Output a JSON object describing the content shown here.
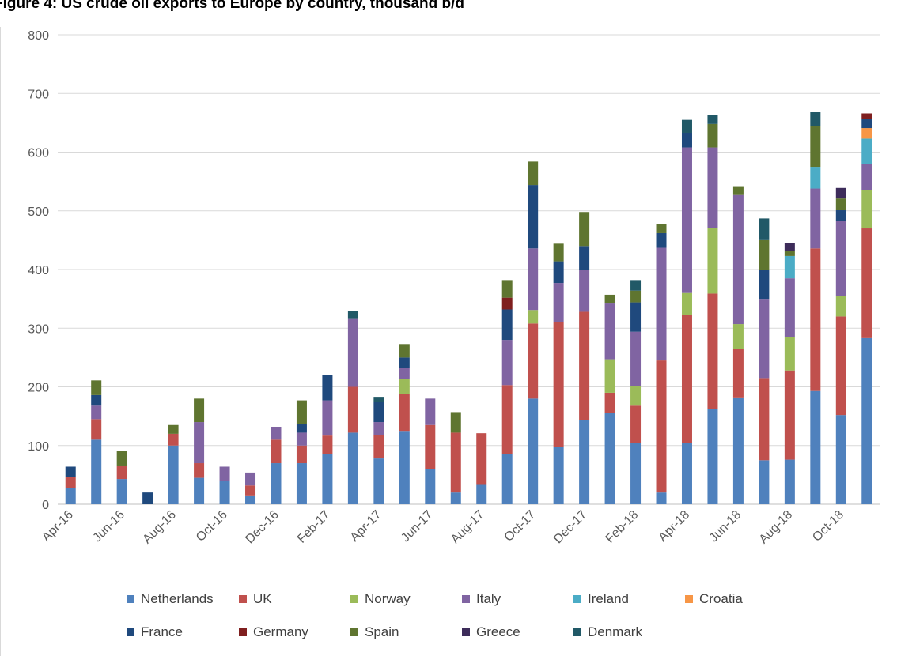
{
  "title": "Figure 4: US crude oil exports to Europe by country, thousand b/d",
  "chart_data": {
    "type": "bar",
    "stacked": true,
    "title": "Figure 4: US crude oil exports to Europe by country, thousand b/d",
    "xlabel": "",
    "ylabel": "",
    "ylim": [
      0,
      800
    ],
    "y_ticks": [
      0,
      100,
      200,
      300,
      400,
      500,
      600,
      700,
      800
    ],
    "grid": true,
    "legend_position": "bottom",
    "categories": [
      "Apr-16",
      "May-16",
      "Jun-16",
      "Jul-16",
      "Aug-16",
      "Sep-16",
      "Oct-16",
      "Nov-16",
      "Dec-16",
      "Jan-17",
      "Feb-17",
      "Mar-17",
      "Apr-17",
      "May-17",
      "Jun-17",
      "Jul-17",
      "Aug-17",
      "Sep-17",
      "Oct-17",
      "Nov-17",
      "Dec-17",
      "Jan-18",
      "Feb-18",
      "Mar-18",
      "Apr-18",
      "May-18",
      "Jun-18",
      "Jul-18",
      "Aug-18",
      "Sep-18",
      "Oct-18",
      "Nov-18"
    ],
    "x_tick_labels": [
      "Apr-16",
      "",
      "Jun-16",
      "",
      "Aug-16",
      "",
      "Oct-16",
      "",
      "Dec-16",
      "",
      "Feb-17",
      "",
      "Apr-17",
      "",
      "Jun-17",
      "",
      "Aug-17",
      "",
      "Oct-17",
      "",
      "Dec-17",
      "",
      "Feb-18",
      "",
      "Apr-18",
      "",
      "Jun-18",
      "",
      "Aug-18",
      "",
      "Oct-18",
      ""
    ],
    "series": [
      {
        "name": "Netherlands",
        "color": "#4f81bd",
        "values": [
          27,
          110,
          43,
          0,
          100,
          45,
          40,
          15,
          70,
          70,
          85,
          122,
          78,
          125,
          60,
          20,
          33,
          85,
          180,
          97,
          143,
          155,
          105,
          20,
          105,
          162,
          182,
          75,
          76,
          193,
          152,
          283
        ]
      },
      {
        "name": "UK",
        "color": "#c0504d",
        "values": [
          20,
          35,
          23,
          0,
          20,
          25,
          0,
          17,
          40,
          30,
          32,
          78,
          40,
          63,
          75,
          102,
          88,
          118,
          128,
          213,
          185,
          35,
          63,
          225,
          217,
          197,
          82,
          140,
          152,
          243,
          168,
          187
        ]
      },
      {
        "name": "Norway",
        "color": "#9bbb59",
        "values": [
          0,
          0,
          0,
          0,
          0,
          0,
          0,
          0,
          0,
          0,
          0,
          0,
          0,
          25,
          0,
          0,
          0,
          0,
          23,
          0,
          0,
          57,
          33,
          0,
          38,
          112,
          43,
          0,
          57,
          0,
          35,
          65
        ]
      },
      {
        "name": "Italy",
        "color": "#8064a2",
        "values": [
          0,
          23,
          0,
          0,
          0,
          70,
          24,
          22,
          22,
          22,
          60,
          117,
          22,
          20,
          45,
          0,
          0,
          77,
          105,
          67,
          72,
          95,
          93,
          192,
          248,
          137,
          220,
          135,
          100,
          102,
          128,
          45
        ]
      },
      {
        "name": "Ireland",
        "color": "#4bacc6",
        "values": [
          0,
          0,
          0,
          0,
          0,
          0,
          0,
          0,
          0,
          0,
          0,
          0,
          0,
          0,
          0,
          0,
          0,
          0,
          0,
          0,
          0,
          0,
          0,
          0,
          0,
          0,
          0,
          0,
          38,
          37,
          0,
          43
        ]
      },
      {
        "name": "Croatia",
        "color": "#f79646",
        "values": [
          0,
          0,
          0,
          0,
          0,
          0,
          0,
          0,
          0,
          0,
          0,
          0,
          0,
          0,
          0,
          0,
          0,
          0,
          0,
          0,
          0,
          0,
          0,
          0,
          0,
          0,
          0,
          0,
          0,
          0,
          0,
          18
        ]
      },
      {
        "name": "France",
        "color": "#1f497d",
        "values": [
          17,
          18,
          0,
          20,
          0,
          0,
          0,
          0,
          0,
          15,
          43,
          0,
          35,
          17,
          0,
          0,
          0,
          52,
          108,
          37,
          40,
          0,
          50,
          25,
          25,
          0,
          0,
          50,
          0,
          0,
          18,
          15
        ]
      },
      {
        "name": "Germany",
        "color": "#7f1f1f",
        "values": [
          0,
          0,
          0,
          0,
          0,
          0,
          0,
          0,
          0,
          0,
          0,
          0,
          0,
          0,
          0,
          0,
          0,
          20,
          0,
          0,
          0,
          0,
          0,
          0,
          0,
          0,
          0,
          0,
          0,
          0,
          0,
          10
        ]
      },
      {
        "name": "Spain",
        "color": "#5f7530",
        "values": [
          0,
          25,
          25,
          0,
          15,
          40,
          0,
          0,
          0,
          40,
          0,
          0,
          0,
          23,
          0,
          35,
          0,
          30,
          40,
          30,
          58,
          15,
          20,
          15,
          0,
          40,
          15,
          50,
          8,
          70,
          20,
          0
        ]
      },
      {
        "name": "Greece",
        "color": "#3d2c5a",
        "values": [
          0,
          0,
          0,
          0,
          0,
          0,
          0,
          0,
          0,
          0,
          0,
          0,
          0,
          0,
          0,
          0,
          0,
          0,
          0,
          0,
          0,
          0,
          0,
          0,
          0,
          0,
          0,
          0,
          14,
          0,
          18,
          0
        ]
      },
      {
        "name": "Denmark",
        "color": "#215967",
        "values": [
          0,
          0,
          0,
          0,
          0,
          0,
          0,
          0,
          0,
          0,
          0,
          12,
          8,
          0,
          0,
          0,
          0,
          0,
          0,
          0,
          0,
          0,
          18,
          0,
          22,
          15,
          0,
          37,
          0,
          23,
          0,
          0
        ]
      }
    ]
  }
}
